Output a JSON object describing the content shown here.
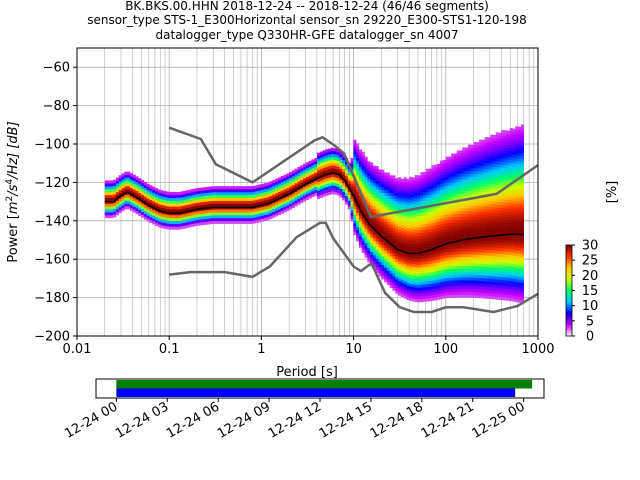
{
  "chart_data": [
    {
      "type": "heatmap",
      "subtype": "PPSD probabilistic power spectral density",
      "title_lines": [
        "BK.BKS.00.HHN   2018-12-24 -- 2018-12-24  (46/46 segments)",
        "sensor_type STS-1_E300Horizontal sensor_sn 29220_E300-STS1-120-198",
        "datalogger_type Q330HR-GFE datalogger_sn 4007"
      ],
      "xlabel": "Period [s]",
      "ylabel_parts": {
        "pre": "Power [",
        "m": "m",
        "e2": "2",
        "s": "/s",
        "e4": "4",
        "post": "/Hz] [dB]"
      },
      "x_scale": "log",
      "xlim": [
        0.01,
        1000
      ],
      "ylim": [
        -200,
        -50
      ],
      "x_ticks": [
        {
          "value": 0.01,
          "label": "0.01"
        },
        {
          "value": 0.1,
          "label": "0.1"
        },
        {
          "value": 1,
          "label": "1"
        },
        {
          "value": 10,
          "label": "10"
        },
        {
          "value": 100,
          "label": "100"
        },
        {
          "value": 1000,
          "label": "1000"
        }
      ],
      "y_ticks": [
        {
          "value": -60,
          "label": "−60"
        },
        {
          "value": -80,
          "label": "−80"
        },
        {
          "value": -100,
          "label": "−100"
        },
        {
          "value": -120,
          "label": "−120"
        },
        {
          "value": -140,
          "label": "−140"
        },
        {
          "value": -160,
          "label": "−160"
        },
        {
          "value": -180,
          "label": "−180"
        },
        {
          "value": -200,
          "label": "−200"
        }
      ],
      "grid": true,
      "series": [
        {
          "role": "new high noise model",
          "color": "#666666",
          "x": [
            0.1,
            0.22,
            0.32,
            0.8,
            3.8,
            4.6,
            6.3,
            7.9,
            15.4,
            20,
            354.8,
            1000
          ],
          "y": [
            -91.5,
            -97.4,
            -110.5,
            -120,
            -98,
            -96.5,
            -101,
            -105,
            -138,
            -137,
            -126,
            -111
          ]
        },
        {
          "role": "new low noise model",
          "color": "#666666",
          "x": [
            0.1,
            0.17,
            0.4,
            0.8,
            1.24,
            2.4,
            4.3,
            5,
            6,
            10,
            12,
            15.6,
            21.9,
            31.6,
            45,
            70,
            101,
            154,
            328,
            600,
            1000
          ],
          "y": [
            -168,
            -166.7,
            -166.7,
            -169.2,
            -163.7,
            -148.6,
            -141.1,
            -141.1,
            -149,
            -163.8,
            -166.2,
            -162.1,
            -177.5,
            -185,
            -187.5,
            -187.5,
            -185,
            -185,
            -187.5,
            -184.4,
            -178
          ]
        },
        {
          "role": "mean PSD",
          "color": "#000000",
          "x": [
            0.02,
            0.025,
            0.03,
            0.035,
            0.045,
            0.06,
            0.08,
            0.1,
            0.13,
            0.2,
            0.3,
            0.5,
            0.8,
            1.2,
            2,
            3,
            4,
            5,
            6,
            7,
            8,
            10,
            12,
            15,
            20,
            30,
            40,
            50,
            70,
            100,
            150,
            200,
            300,
            500,
            700
          ],
          "y": [
            -130,
            -130,
            -127,
            -125,
            -128,
            -132,
            -135,
            -136,
            -136,
            -134,
            -133,
            -133,
            -133,
            -131,
            -126,
            -121,
            -118,
            -116,
            -115,
            -116,
            -119,
            -127,
            -135,
            -142,
            -148,
            -155,
            -157,
            -157,
            -155,
            -152,
            -150,
            -149,
            -148,
            -147,
            -147
          ]
        }
      ],
      "density_colorbar": {
        "label": "[%]",
        "range": [
          0,
          30
        ],
        "ticks": [
          {
            "value": 0,
            "label": "0"
          },
          {
            "value": 5,
            "label": "5"
          },
          {
            "value": 10,
            "label": "10"
          },
          {
            "value": 15,
            "label": "15"
          },
          {
            "value": 20,
            "label": "20"
          },
          {
            "value": 25,
            "label": "25"
          },
          {
            "value": 30,
            "label": "30"
          }
        ],
        "colors": [
          "#f5f5f5",
          "#c800ff",
          "#0000ff",
          "#00c8ff",
          "#00ff64",
          "#c8ff00",
          "#ffc800",
          "#ff3000",
          "#800000"
        ]
      }
    },
    {
      "type": "timeline",
      "subtype": "data coverage",
      "x_ticks": [
        {
          "hours": 0,
          "label": "12-24 00"
        },
        {
          "hours": 3,
          "label": "12-24 03"
        },
        {
          "hours": 6,
          "label": "12-24 06"
        },
        {
          "hours": 9,
          "label": "12-24 09"
        },
        {
          "hours": 12,
          "label": "12-24 12"
        },
        {
          "hours": 15,
          "label": "12-24 15"
        },
        {
          "hours": 18,
          "label": "12-24 18"
        },
        {
          "hours": 21,
          "label": "12-24 21"
        },
        {
          "hours": 24,
          "label": "12-25 00"
        }
      ],
      "xlim_hours": [
        -1.2,
        25.2
      ],
      "bars": [
        {
          "role": "data available",
          "color": "#008000",
          "start": 0,
          "end": 24.5
        },
        {
          "role": "used segments",
          "color": "#0000ff",
          "start": 0,
          "end": 23.5
        }
      ]
    }
  ]
}
